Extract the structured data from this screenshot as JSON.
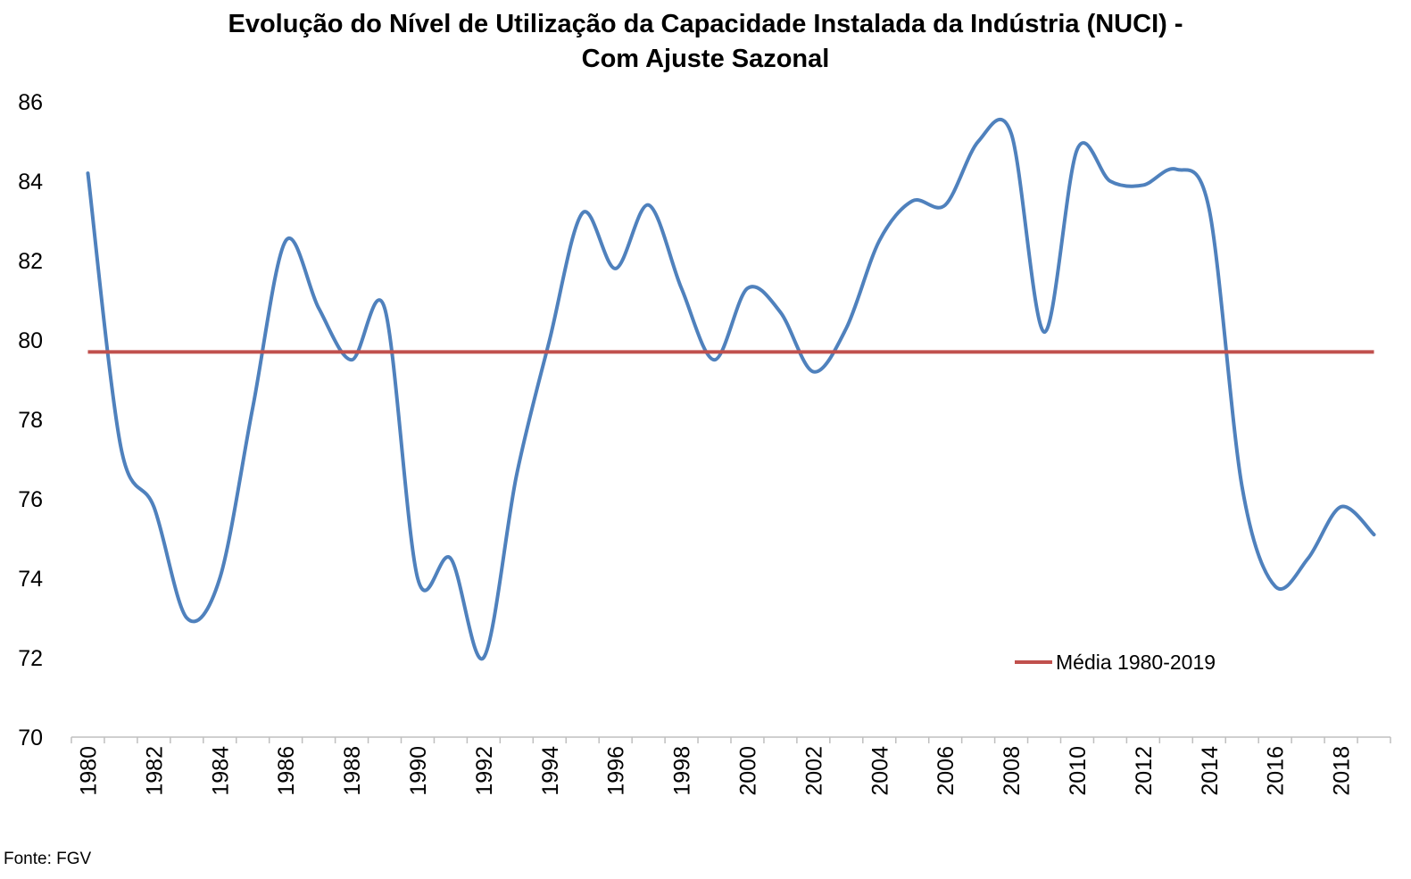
{
  "title_line1": "Evolução do Nível de Utilização da Capacidade Instalada da Indústria (NUCI) -",
  "title_line2": "Com Ajuste Sazonal",
  "source": "Fonte: FGV",
  "colors": {
    "series": "#4f81bd",
    "average": "#c0504d",
    "axis": "#bfbfbf"
  },
  "chart_data": {
    "type": "line",
    "title": "Evolução do Nível de Utilização da Capacidade Instalada da Indústria (NUCI) - Com Ajuste Sazonal",
    "ylim": [
      70,
      86
    ],
    "yticks": [
      70,
      72,
      74,
      76,
      78,
      80,
      82,
      84,
      86
    ],
    "xtick_labels": [
      "1980",
      "1982",
      "1984",
      "1986",
      "1988",
      "1990",
      "1992",
      "1994",
      "1996",
      "1998",
      "2000",
      "2002",
      "2004",
      "2006",
      "2008",
      "2010",
      "2012",
      "2014",
      "2016",
      "2018"
    ],
    "x": [
      1980,
      1981,
      1982,
      1983,
      1984,
      1985,
      1986,
      1987,
      1988,
      1989,
      1990,
      1991,
      1992,
      1993,
      1994,
      1995,
      1996,
      1997,
      1998,
      1999,
      2000,
      2001,
      2002,
      2003,
      2004,
      2005,
      2006,
      2007,
      2008,
      2009,
      2010,
      2011,
      2012,
      2013,
      2014,
      2015,
      2016,
      2017,
      2018,
      2019
    ],
    "series": [
      {
        "values": [
          84.2,
          77.3,
          75.8,
          73.0,
          74.0,
          78.3,
          82.5,
          80.8,
          79.5,
          80.8,
          74.0,
          74.5,
          72.0,
          76.6,
          80.0,
          83.2,
          81.8,
          83.4,
          81.3,
          79.5,
          81.3,
          80.7,
          79.2,
          80.3,
          82.5,
          83.5,
          83.4,
          85.0,
          85.2,
          80.2,
          84.8,
          84.0,
          83.9,
          84.3,
          83.3,
          76.3,
          73.8,
          74.5,
          75.8,
          75.1
        ]
      },
      {
        "name": "Média 1980-2019",
        "values": [
          79.7,
          79.7,
          79.7,
          79.7,
          79.7,
          79.7,
          79.7,
          79.7,
          79.7,
          79.7,
          79.7,
          79.7,
          79.7,
          79.7,
          79.7,
          79.7,
          79.7,
          79.7,
          79.7,
          79.7,
          79.7,
          79.7,
          79.7,
          79.7,
          79.7,
          79.7,
          79.7,
          79.7,
          79.7,
          79.7,
          79.7,
          79.7,
          79.7,
          79.7,
          79.7,
          79.7,
          79.7,
          79.7,
          79.7,
          79.7
        ]
      }
    ],
    "legend": {
      "position": "bottom-right",
      "entries": [
        "Média 1980-2019"
      ]
    },
    "grid": false
  }
}
